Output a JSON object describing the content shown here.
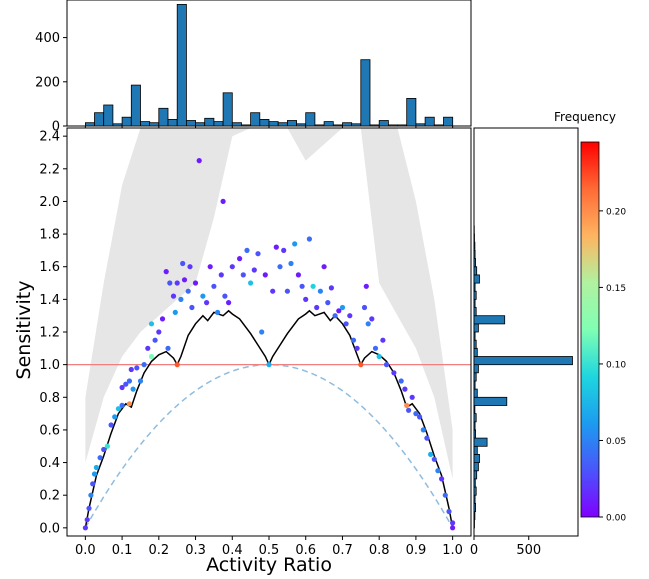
{
  "chart_data": [
    {
      "type": "scatter",
      "panel": "main",
      "xlabel": "Activity Ratio",
      "ylabel": "Sensitivity",
      "xlim": [
        -0.05,
        1.05
      ],
      "ylim": [
        -0.05,
        2.45
      ],
      "x_ticks": [
        "0.0",
        "0.1",
        "0.2",
        "0.3",
        "0.4",
        "0.5",
        "0.6",
        "0.7",
        "0.8",
        "0.9",
        "1.0"
      ],
      "y_ticks": [
        "0.0",
        "0.2",
        "0.4",
        "0.6",
        "0.8",
        "1.0",
        "1.2",
        "1.4",
        "1.6",
        "1.8",
        "2.0",
        "2.2",
        "2.4"
      ],
      "reference_line": {
        "y": 1.0,
        "color": "#f08080"
      },
      "lower_curve": {
        "formula": "4*x*(1-x)",
        "color": "#8fbcdf",
        "style": "dashed"
      },
      "upper_envelope": {
        "color": "#000000",
        "x": [
          0.0,
          0.01,
          0.02,
          0.03,
          0.05,
          0.07,
          0.09,
          0.1,
          0.11,
          0.125,
          0.14,
          0.16,
          0.18,
          0.2,
          0.22,
          0.24,
          0.25,
          0.26,
          0.28,
          0.3,
          0.32,
          0.333,
          0.35,
          0.375,
          0.39,
          0.4,
          0.42,
          0.45,
          0.47,
          0.49,
          0.5,
          0.51,
          0.53,
          0.55,
          0.58,
          0.6,
          0.61,
          0.625,
          0.65,
          0.667,
          0.68,
          0.7,
          0.72,
          0.75,
          0.76,
          0.78,
          0.8,
          0.82,
          0.84,
          0.86,
          0.875,
          0.89,
          0.9,
          0.91,
          0.93,
          0.95,
          0.97,
          0.98,
          0.99,
          1.0
        ],
        "y": [
          0.0,
          0.12,
          0.22,
          0.32,
          0.44,
          0.58,
          0.7,
          0.73,
          0.76,
          0.74,
          0.84,
          0.95,
          1.02,
          1.06,
          1.08,
          1.04,
          1.0,
          1.05,
          1.18,
          1.25,
          1.3,
          1.27,
          1.32,
          1.3,
          1.33,
          1.31,
          1.28,
          1.19,
          1.12,
          1.05,
          1.0,
          1.05,
          1.12,
          1.19,
          1.28,
          1.31,
          1.33,
          1.3,
          1.32,
          1.27,
          1.3,
          1.25,
          1.18,
          1.0,
          1.04,
          1.08,
          1.06,
          1.02,
          0.95,
          0.84,
          0.74,
          0.76,
          0.73,
          0.7,
          0.58,
          0.44,
          0.32,
          0.22,
          0.12,
          0.0
        ]
      },
      "shaded_band": {
        "color": "#e6e6e6",
        "x": [
          0.0,
          0.05,
          0.1,
          0.15,
          0.2,
          0.25,
          0.3,
          0.35,
          0.4,
          0.45,
          0.5,
          0.55,
          0.6,
          0.65,
          0.7,
          0.75,
          0.8,
          0.85,
          0.9,
          0.95,
          1.0
        ],
        "y_low": [
          0.4,
          0.8,
          1.05,
          1.2,
          1.3,
          1.4,
          1.5,
          1.9,
          2.4,
          2.45,
          2.45,
          2.45,
          2.25,
          2.35,
          2.45,
          2.45,
          1.5,
          1.3,
          1.1,
          0.8,
          0.3
        ],
        "y_high": [
          0.8,
          1.5,
          2.1,
          2.45,
          2.45,
          2.45,
          2.45,
          2.45,
          2.45,
          2.45,
          2.45,
          2.45,
          2.45,
          2.45,
          2.45,
          2.45,
          2.45,
          2.45,
          2.0,
          1.4,
          0.6
        ]
      },
      "points": [
        {
          "x": 0.0,
          "y": 0.0,
          "f": 0.02
        },
        {
          "x": 0.005,
          "y": 0.05,
          "f": 0.02
        },
        {
          "x": 0.01,
          "y": 0.12,
          "f": 0.03
        },
        {
          "x": 0.015,
          "y": 0.2,
          "f": 0.05
        },
        {
          "x": 0.02,
          "y": 0.27,
          "f": 0.03
        },
        {
          "x": 0.025,
          "y": 0.33,
          "f": 0.06
        },
        {
          "x": 0.03,
          "y": 0.37,
          "f": 0.07
        },
        {
          "x": 0.04,
          "y": 0.43,
          "f": 0.04
        },
        {
          "x": 0.05,
          "y": 0.48,
          "f": 0.03
        },
        {
          "x": 0.06,
          "y": 0.5,
          "f": 0.1
        },
        {
          "x": 0.07,
          "y": 0.63,
          "f": 0.03
        },
        {
          "x": 0.08,
          "y": 0.68,
          "f": 0.06
        },
        {
          "x": 0.09,
          "y": 0.73,
          "f": 0.08
        },
        {
          "x": 0.1,
          "y": 0.75,
          "f": 0.04
        },
        {
          "x": 0.1,
          "y": 0.86,
          "f": 0.02
        },
        {
          "x": 0.11,
          "y": 0.88,
          "f": 0.03
        },
        {
          "x": 0.12,
          "y": 0.76,
          "f": 0.2
        },
        {
          "x": 0.12,
          "y": 0.9,
          "f": 0.04
        },
        {
          "x": 0.125,
          "y": 0.97,
          "f": 0.02
        },
        {
          "x": 0.13,
          "y": 0.85,
          "f": 0.06
        },
        {
          "x": 0.14,
          "y": 0.98,
          "f": 0.03
        },
        {
          "x": 0.15,
          "y": 0.9,
          "f": 0.05
        },
        {
          "x": 0.16,
          "y": 1.0,
          "f": 0.04
        },
        {
          "x": 0.17,
          "y": 1.1,
          "f": 0.02
        },
        {
          "x": 0.18,
          "y": 1.05,
          "f": 0.12
        },
        {
          "x": 0.18,
          "y": 1.25,
          "f": 0.08
        },
        {
          "x": 0.19,
          "y": 1.15,
          "f": 0.03
        },
        {
          "x": 0.2,
          "y": 1.2,
          "f": 0.02
        },
        {
          "x": 0.21,
          "y": 1.28,
          "f": 0.01
        },
        {
          "x": 0.22,
          "y": 1.57,
          "f": 0.01
        },
        {
          "x": 0.225,
          "y": 1.1,
          "f": 0.04
        },
        {
          "x": 0.23,
          "y": 1.5,
          "f": 0.03
        },
        {
          "x": 0.24,
          "y": 1.42,
          "f": 0.02
        },
        {
          "x": 0.245,
          "y": 1.32,
          "f": 0.06
        },
        {
          "x": 0.25,
          "y": 1.0,
          "f": 0.22
        },
        {
          "x": 0.25,
          "y": 1.5,
          "f": 0.02
        },
        {
          "x": 0.26,
          "y": 1.4,
          "f": 0.05
        },
        {
          "x": 0.265,
          "y": 1.62,
          "f": 0.03
        },
        {
          "x": 0.27,
          "y": 1.52,
          "f": 0.01
        },
        {
          "x": 0.28,
          "y": 1.45,
          "f": 0.04
        },
        {
          "x": 0.285,
          "y": 1.6,
          "f": 0.02
        },
        {
          "x": 0.29,
          "y": 1.35,
          "f": 0.03
        },
        {
          "x": 0.3,
          "y": 1.5,
          "f": 0.01
        },
        {
          "x": 0.31,
          "y": 2.25,
          "f": 0.01
        },
        {
          "x": 0.32,
          "y": 1.42,
          "f": 0.06
        },
        {
          "x": 0.33,
          "y": 1.38,
          "f": 0.02
        },
        {
          "x": 0.34,
          "y": 1.6,
          "f": 0.01
        },
        {
          "x": 0.35,
          "y": 1.48,
          "f": 0.03
        },
        {
          "x": 0.36,
          "y": 1.32,
          "f": 0.05
        },
        {
          "x": 0.37,
          "y": 1.55,
          "f": 0.02
        },
        {
          "x": 0.375,
          "y": 2.0,
          "f": 0.01
        },
        {
          "x": 0.38,
          "y": 1.42,
          "f": 0.03
        },
        {
          "x": 0.39,
          "y": 1.38,
          "f": 0.01
        },
        {
          "x": 0.4,
          "y": 1.6,
          "f": 0.02
        },
        {
          "x": 0.42,
          "y": 1.65,
          "f": 0.01
        },
        {
          "x": 0.43,
          "y": 1.55,
          "f": 0.03
        },
        {
          "x": 0.44,
          "y": 1.7,
          "f": 0.04
        },
        {
          "x": 0.45,
          "y": 1.5,
          "f": 0.08
        },
        {
          "x": 0.46,
          "y": 1.58,
          "f": 0.02
        },
        {
          "x": 0.47,
          "y": 1.68,
          "f": 0.03
        },
        {
          "x": 0.48,
          "y": 1.2,
          "f": 0.05
        },
        {
          "x": 0.49,
          "y": 1.55,
          "f": 0.01
        },
        {
          "x": 0.5,
          "y": 1.0,
          "f": 0.07
        },
        {
          "x": 0.51,
          "y": 1.45,
          "f": 0.02
        },
        {
          "x": 0.52,
          "y": 1.72,
          "f": 0.01
        },
        {
          "x": 0.53,
          "y": 1.6,
          "f": 0.04
        },
        {
          "x": 0.54,
          "y": 1.7,
          "f": 0.02
        },
        {
          "x": 0.55,
          "y": 1.45,
          "f": 0.03
        },
        {
          "x": 0.56,
          "y": 1.62,
          "f": 0.05
        },
        {
          "x": 0.57,
          "y": 1.74,
          "f": 0.06
        },
        {
          "x": 0.58,
          "y": 1.55,
          "f": 0.01
        },
        {
          "x": 0.59,
          "y": 1.48,
          "f": 0.03
        },
        {
          "x": 0.6,
          "y": 1.4,
          "f": 0.02
        },
        {
          "x": 0.61,
          "y": 1.77,
          "f": 0.04
        },
        {
          "x": 0.62,
          "y": 1.48,
          "f": 0.09
        },
        {
          "x": 0.63,
          "y": 1.35,
          "f": 0.02
        },
        {
          "x": 0.64,
          "y": 1.45,
          "f": 0.05
        },
        {
          "x": 0.65,
          "y": 1.6,
          "f": 0.01
        },
        {
          "x": 0.66,
          "y": 1.38,
          "f": 0.03
        },
        {
          "x": 0.67,
          "y": 1.47,
          "f": 0.02
        },
        {
          "x": 0.68,
          "y": 1.3,
          "f": 0.04
        },
        {
          "x": 0.69,
          "y": 1.33,
          "f": 0.01
        },
        {
          "x": 0.7,
          "y": 1.35,
          "f": 0.06
        },
        {
          "x": 0.71,
          "y": 1.25,
          "f": 0.03
        },
        {
          "x": 0.72,
          "y": 1.3,
          "f": 0.02
        },
        {
          "x": 0.73,
          "y": 1.15,
          "f": 0.04
        },
        {
          "x": 0.74,
          "y": 1.1,
          "f": 0.02
        },
        {
          "x": 0.75,
          "y": 1.0,
          "f": 0.22
        },
        {
          "x": 0.76,
          "y": 1.35,
          "f": 0.03
        },
        {
          "x": 0.765,
          "y": 1.48,
          "f": 0.01
        },
        {
          "x": 0.77,
          "y": 1.25,
          "f": 0.05
        },
        {
          "x": 0.78,
          "y": 1.28,
          "f": 0.02
        },
        {
          "x": 0.79,
          "y": 1.1,
          "f": 0.04
        },
        {
          "x": 0.8,
          "y": 1.05,
          "f": 0.08
        },
        {
          "x": 0.81,
          "y": 1.15,
          "f": 0.02
        },
        {
          "x": 0.82,
          "y": 1.0,
          "f": 0.03
        },
        {
          "x": 0.84,
          "y": 0.95,
          "f": 0.02
        },
        {
          "x": 0.86,
          "y": 0.9,
          "f": 0.04
        },
        {
          "x": 0.87,
          "y": 0.85,
          "f": 0.02
        },
        {
          "x": 0.875,
          "y": 0.75,
          "f": 0.2
        },
        {
          "x": 0.88,
          "y": 0.72,
          "f": 0.03
        },
        {
          "x": 0.89,
          "y": 0.8,
          "f": 0.02
        },
        {
          "x": 0.9,
          "y": 0.7,
          "f": 0.04
        },
        {
          "x": 0.91,
          "y": 0.68,
          "f": 0.03
        },
        {
          "x": 0.92,
          "y": 0.6,
          "f": 0.05
        },
        {
          "x": 0.93,
          "y": 0.55,
          "f": 0.03
        },
        {
          "x": 0.94,
          "y": 0.45,
          "f": 0.07
        },
        {
          "x": 0.95,
          "y": 0.42,
          "f": 0.03
        },
        {
          "x": 0.96,
          "y": 0.35,
          "f": 0.05
        },
        {
          "x": 0.97,
          "y": 0.3,
          "f": 0.02
        },
        {
          "x": 0.98,
          "y": 0.2,
          "f": 0.04
        },
        {
          "x": 0.99,
          "y": 0.1,
          "f": 0.03
        },
        {
          "x": 1.0,
          "y": 0.03,
          "f": 0.02
        },
        {
          "x": 1.0,
          "y": 0.0,
          "f": 0.01
        }
      ]
    },
    {
      "type": "bar",
      "panel": "top-histogram",
      "bins_x": [
        0.0,
        0.025,
        0.05,
        0.075,
        0.1,
        0.125,
        0.15,
        0.175,
        0.2,
        0.225,
        0.25,
        0.275,
        0.3,
        0.325,
        0.35,
        0.375,
        0.4,
        0.425,
        0.45,
        0.475,
        0.5,
        0.525,
        0.55,
        0.575,
        0.6,
        0.625,
        0.65,
        0.675,
        0.7,
        0.725,
        0.75,
        0.775,
        0.8,
        0.825,
        0.85,
        0.875,
        0.9,
        0.925,
        0.95,
        0.975
      ],
      "bin_width": 0.025,
      "values": [
        15,
        60,
        95,
        10,
        40,
        185,
        20,
        15,
        80,
        30,
        550,
        25,
        15,
        35,
        20,
        150,
        15,
        5,
        60,
        30,
        20,
        15,
        25,
        10,
        60,
        5,
        20,
        5,
        15,
        10,
        300,
        5,
        25,
        5,
        5,
        125,
        10,
        40,
        5,
        40
      ],
      "y_ticks": [
        "0",
        "200",
        "400"
      ],
      "ylim": [
        0,
        570
      ],
      "x_ticks": [
        "0.0",
        "0.1",
        "0.2",
        "0.3",
        "0.4",
        "0.5",
        "0.6",
        "0.7",
        "0.8",
        "0.9",
        "1.0"
      ]
    },
    {
      "type": "bar",
      "panel": "right-histogram",
      "orientation": "horizontal",
      "bins_y": [
        0.0,
        0.05,
        0.1,
        0.15,
        0.2,
        0.25,
        0.3,
        0.35,
        0.4,
        0.45,
        0.5,
        0.55,
        0.6,
        0.65,
        0.7,
        0.75,
        0.8,
        0.85,
        0.9,
        0.95,
        1.0,
        1.05,
        1.1,
        1.15,
        1.2,
        1.25,
        1.3,
        1.35,
        1.4,
        1.45,
        1.5,
        1.55,
        1.6,
        1.65,
        1.7,
        1.75,
        1.8
      ],
      "bin_height": 0.05,
      "values": [
        5,
        8,
        15,
        10,
        20,
        12,
        25,
        40,
        50,
        30,
        120,
        15,
        10,
        20,
        8,
        300,
        30,
        10,
        20,
        40,
        900,
        30,
        20,
        10,
        40,
        280,
        20,
        10,
        20,
        10,
        50,
        25,
        15,
        10,
        8,
        5,
        3
      ],
      "x_ticks": [
        "0",
        "500"
      ],
      "xlim": [
        0,
        950
      ]
    }
  ],
  "colorbar": {
    "title": "Frequency",
    "ticks": [
      "0.00",
      "0.05",
      "0.10",
      "0.15",
      "0.20"
    ],
    "range": [
      0.0,
      0.245
    ]
  }
}
